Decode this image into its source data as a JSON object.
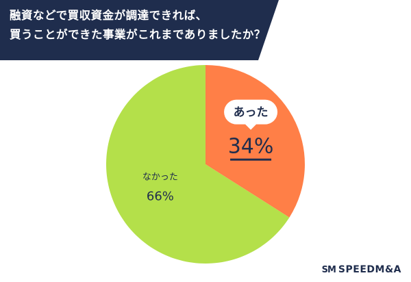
{
  "header": {
    "line1": "融資などで買収資金が調達できれば、",
    "line2": "買うことができた事業がこれまでありましたか？",
    "color": "#1f2d4d"
  },
  "chart_data": {
    "type": "pie",
    "slices": [
      {
        "label": "あった",
        "value": 34,
        "value_label": "34%",
        "color": "#ff7f47"
      },
      {
        "label": "なかった",
        "value": 66,
        "value_label": "66%",
        "color": "#b4e04a"
      }
    ]
  },
  "logo": {
    "mark": "SM",
    "text": "SPEEDM&A"
  }
}
